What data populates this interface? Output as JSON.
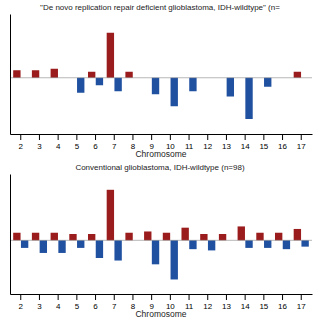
{
  "chart_data": [
    {
      "type": "bar",
      "title": "\"De novo replication repair deficient glioblastoma, IDH-wildtype\" (n=",
      "xlabel": "Chromosome",
      "categories": [
        "2",
        "3",
        "4",
        "5",
        "6",
        "7",
        "8",
        "9",
        "10",
        "11",
        "12",
        "13",
        "14",
        "15",
        "16",
        "17"
      ],
      "series": [
        {
          "color": "#9B1C1C",
          "values": [
            0.1,
            0.1,
            0.12,
            0.0,
            0.08,
            0.6,
            0.08,
            0.0,
            0.0,
            0.0,
            0.0,
            0.0,
            0.0,
            0.0,
            0.0,
            0.08
          ]
        },
        {
          "color": "#2050A0",
          "values": [
            0.0,
            0.0,
            0.0,
            -0.2,
            -0.1,
            -0.18,
            0.0,
            -0.22,
            -0.38,
            -0.18,
            0.0,
            -0.25,
            -0.55,
            -0.12,
            0.0,
            0.0
          ]
        }
      ],
      "ylim": [
        -0.75,
        0.85
      ],
      "tick_labels": "x",
      "grid": false
    },
    {
      "type": "bar",
      "title": "Conventional glioblastoma, IDH-wildtype (n=98)",
      "xlabel": "Chromosome",
      "categories": [
        "2",
        "3",
        "4",
        "5",
        "6",
        "7",
        "8",
        "9",
        "10",
        "11",
        "12",
        "13",
        "14",
        "15",
        "16",
        "17"
      ],
      "series": [
        {
          "color": "#9B1C1C",
          "values": [
            0.12,
            0.12,
            0.12,
            0.1,
            0.1,
            0.8,
            0.12,
            0.14,
            0.12,
            0.2,
            0.1,
            0.1,
            0.22,
            0.12,
            0.12,
            0.18
          ]
        },
        {
          "color": "#2050A0",
          "values": [
            -0.12,
            -0.2,
            -0.2,
            -0.12,
            -0.28,
            -0.32,
            0.0,
            -0.38,
            -0.62,
            -0.14,
            -0.16,
            0.0,
            -0.12,
            -0.12,
            -0.14,
            -0.1
          ]
        }
      ],
      "ylim": [
        -0.85,
        1.05
      ],
      "tick_labels": "x",
      "grid": false
    }
  ]
}
